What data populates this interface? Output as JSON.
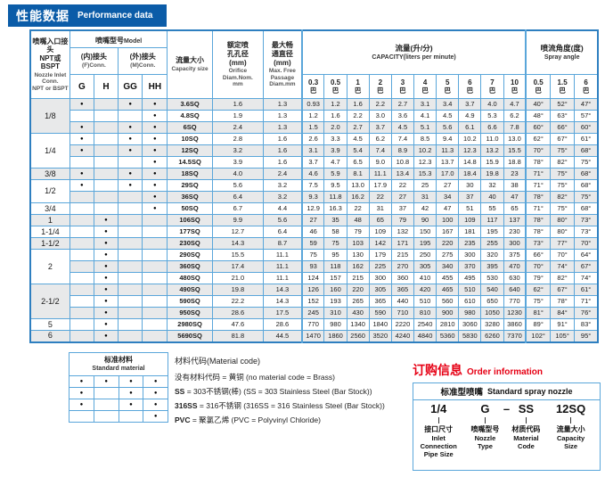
{
  "page": {
    "title_cn": "性能数据",
    "title_en": "Performance data"
  },
  "table": {
    "header": {
      "inlet_cn": "喷嘴入口接头\nNPT或BSPT",
      "inlet_en": "Nozzle Inlet\nConn.\nNPT or BSPT",
      "model_cn": "喷嘴型号",
      "model_en": "Model",
      "fconn_cn": "(内)接头",
      "fconn_en": "(F)Conn.",
      "mconn_cn": "(外)接头",
      "mconn_en": "(M)Conn.",
      "model_cols": [
        "G",
        "H",
        "GG",
        "HH"
      ],
      "capacity_size_cn": "流量大小",
      "capacity_size_en": "Capacity size",
      "orifice_cn": "额定喷\n孔孔径\n(mm)",
      "orifice_en": "Orifice\nDiam.Nom.\nmm",
      "passage_cn": "最大畅\n通直径\n(mm)",
      "passage_en": "Max. Free\nPassage\nDiam.mm",
      "capacity_group_cn": "流量(升/分)",
      "capacity_group_en": "CAPACITY(liters per minute)",
      "pressures": [
        "0.3",
        "0.5",
        "1",
        "2",
        "3",
        "4",
        "5",
        "6",
        "7",
        "10"
      ],
      "pressure_unit": "巴",
      "spray_group_cn": "喷流角度(度)",
      "spray_group_en": "Spray angle",
      "spray_pressures": [
        "0.5",
        "1.5",
        "6"
      ]
    },
    "dot_char": "●",
    "groups": [
      {
        "inlet": "1/8",
        "rows": [
          {
            "size": "3.6SQ",
            "conns": [
              1,
              0,
              1,
              1
            ],
            "orifice": "1.6",
            "passage": "1.3",
            "flows": [
              "0.93",
              "1.2",
              "1.6",
              "2.2",
              "2.7",
              "3.1",
              "3.4",
              "3.7",
              "4.0",
              "4.7"
            ],
            "angles": [
              "40°",
              "52°",
              "47°"
            ]
          },
          {
            "size": "4.8SQ",
            "conns": [
              0,
              0,
              0,
              1
            ],
            "orifice": "1.9",
            "passage": "1.3",
            "flows": [
              "1.2",
              "1.6",
              "2.2",
              "3.0",
              "3.6",
              "4.1",
              "4.5",
              "4.9",
              "5.3",
              "6.2"
            ],
            "angles": [
              "48°",
              "63°",
              "57°"
            ]
          },
          {
            "size": "6SQ",
            "conns": [
              1,
              0,
              1,
              1
            ],
            "orifice": "2.4",
            "passage": "1.3",
            "flows": [
              "1.5",
              "2.0",
              "2.7",
              "3.7",
              "4.5",
              "5.1",
              "5.6",
              "6.1",
              "6.6",
              "7.8"
            ],
            "angles": [
              "60°",
              "66°",
              "60°"
            ]
          }
        ]
      },
      {
        "inlet": "1/4",
        "rows": [
          {
            "size": "10SQ",
            "conns": [
              1,
              0,
              1,
              1
            ],
            "orifice": "2.8",
            "passage": "1.6",
            "flows": [
              "2.6",
              "3.3",
              "4.5",
              "6.2",
              "7.4",
              "8.5",
              "9.4",
              "10.2",
              "11.0",
              "13.0"
            ],
            "angles": [
              "62°",
              "67°",
              "61°"
            ]
          },
          {
            "size": "12SQ",
            "conns": [
              1,
              0,
              1,
              1
            ],
            "orifice": "3.2",
            "passage": "1.6",
            "flows": [
              "3.1",
              "3.9",
              "5.4",
              "7.4",
              "8.9",
              "10.2",
              "11.3",
              "12.3",
              "13.2",
              "15.5"
            ],
            "angles": [
              "70°",
              "75°",
              "68°"
            ]
          },
          {
            "size": "14.5SQ",
            "conns": [
              0,
              0,
              0,
              1
            ],
            "orifice": "3.9",
            "passage": "1.6",
            "flows": [
              "3.7",
              "4.7",
              "6.5",
              "9.0",
              "10.8",
              "12.3",
              "13.7",
              "14.8",
              "15.9",
              "18.8"
            ],
            "angles": [
              "78°",
              "82°",
              "75°"
            ]
          }
        ]
      },
      {
        "inlet": "3/8",
        "rows": [
          {
            "size": "18SQ",
            "conns": [
              1,
              0,
              1,
              1
            ],
            "orifice": "4.0",
            "passage": "2.4",
            "flows": [
              "4.6",
              "5.9",
              "8.1",
              "11.1",
              "13.4",
              "15.3",
              "17.0",
              "18.4",
              "19.8",
              "23"
            ],
            "angles": [
              "71°",
              "75°",
              "68°"
            ]
          }
        ]
      },
      {
        "inlet": "1/2",
        "rows": [
          {
            "size": "29SQ",
            "conns": [
              1,
              0,
              1,
              1
            ],
            "orifice": "5.6",
            "passage": "3.2",
            "flows": [
              "7.5",
              "9.5",
              "13.0",
              "17.9",
              "22",
              "25",
              "27",
              "30",
              "32",
              "38"
            ],
            "angles": [
              "71°",
              "75°",
              "68°"
            ]
          },
          {
            "size": "36SQ",
            "conns": [
              0,
              0,
              0,
              1
            ],
            "orifice": "6.4",
            "passage": "3.2",
            "flows": [
              "9.3",
              "11.8",
              "16.2",
              "22",
              "27",
              "31",
              "34",
              "37",
              "40",
              "47"
            ],
            "angles": [
              "78°",
              "82°",
              "75°"
            ]
          }
        ]
      },
      {
        "inlet": "3/4",
        "rows": [
          {
            "size": "50SQ",
            "conns": [
              0,
              0,
              0,
              1
            ],
            "orifice": "6.7",
            "passage": "4.4",
            "flows": [
              "12.9",
              "16.3",
              "22",
              "31",
              "37",
              "42",
              "47",
              "51",
              "55",
              "65"
            ],
            "angles": [
              "71°",
              "75°",
              "68°"
            ]
          }
        ]
      },
      {
        "inlet": "1",
        "rows": [
          {
            "size": "106SQ",
            "conns": [
              0,
              1,
              0,
              0
            ],
            "orifice": "9.9",
            "passage": "5.6",
            "flows": [
              "27",
              "35",
              "48",
              "65",
              "79",
              "90",
              "100",
              "109",
              "117",
              "137"
            ],
            "angles": [
              "78°",
              "80°",
              "73°"
            ]
          }
        ]
      },
      {
        "inlet": "1-1/4",
        "rows": [
          {
            "size": "177SQ",
            "conns": [
              0,
              1,
              0,
              0
            ],
            "orifice": "12.7",
            "passage": "6.4",
            "flows": [
              "46",
              "58",
              "79",
              "109",
              "132",
              "150",
              "167",
              "181",
              "195",
              "230"
            ],
            "angles": [
              "78°",
              "80°",
              "73°"
            ]
          }
        ]
      },
      {
        "inlet": "1-1/2",
        "rows": [
          {
            "size": "230SQ",
            "conns": [
              0,
              1,
              0,
              0
            ],
            "orifice": "14.3",
            "passage": "8.7",
            "flows": [
              "59",
              "75",
              "103",
              "142",
              "171",
              "195",
              "220",
              "235",
              "255",
              "300"
            ],
            "angles": [
              "73°",
              "77°",
              "70°"
            ]
          }
        ]
      },
      {
        "inlet": "2",
        "rows": [
          {
            "size": "290SQ",
            "conns": [
              0,
              1,
              0,
              0
            ],
            "orifice": "15.5",
            "passage": "11.1",
            "flows": [
              "75",
              "95",
              "130",
              "179",
              "215",
              "250",
              "275",
              "300",
              "320",
              "375"
            ],
            "angles": [
              "66°",
              "70°",
              "64°"
            ]
          },
          {
            "size": "360SQ",
            "conns": [
              0,
              1,
              0,
              0
            ],
            "orifice": "17.4",
            "passage": "11.1",
            "flows": [
              "93",
              "118",
              "162",
              "225",
              "270",
              "305",
              "340",
              "370",
              "395",
              "470"
            ],
            "angles": [
              "70°",
              "74°",
              "67°"
            ]
          },
          {
            "size": "480SQ",
            "conns": [
              0,
              1,
              0,
              0
            ],
            "orifice": "21.0",
            "passage": "11.1",
            "flows": [
              "124",
              "157",
              "215",
              "300",
              "360",
              "410",
              "455",
              "495",
              "530",
              "630"
            ],
            "angles": [
              "79°",
              "82°",
              "74°"
            ]
          }
        ]
      },
      {
        "inlet": "2-1/2",
        "rows": [
          {
            "size": "490SQ",
            "conns": [
              0,
              1,
              0,
              0
            ],
            "orifice": "19.8",
            "passage": "14.3",
            "flows": [
              "126",
              "160",
              "220",
              "305",
              "365",
              "420",
              "465",
              "510",
              "540",
              "640"
            ],
            "angles": [
              "62°",
              "67°",
              "61°"
            ]
          },
          {
            "size": "590SQ",
            "conns": [
              0,
              1,
              0,
              0
            ],
            "orifice": "22.2",
            "passage": "14.3",
            "flows": [
              "152",
              "193",
              "265",
              "365",
              "440",
              "510",
              "560",
              "610",
              "650",
              "770"
            ],
            "angles": [
              "75°",
              "78°",
              "71°"
            ]
          },
          {
            "size": "950SQ",
            "conns": [
              0,
              1,
              0,
              0
            ],
            "orifice": "28.6",
            "passage": "17.5",
            "flows": [
              "245",
              "310",
              "430",
              "590",
              "710",
              "810",
              "900",
              "980",
              "1050",
              "1230"
            ],
            "angles": [
              "81°",
              "84°",
              "76°"
            ]
          }
        ]
      },
      {
        "inlet": "5",
        "rows": [
          {
            "size": "2980SQ",
            "conns": [
              0,
              1,
              0,
              0
            ],
            "orifice": "47.6",
            "passage": "28.6",
            "flows": [
              "770",
              "980",
              "1340",
              "1840",
              "2220",
              "2540",
              "2810",
              "3060",
              "3280",
              "3860"
            ],
            "angles": [
              "89°",
              "91°",
              "83°"
            ]
          }
        ]
      },
      {
        "inlet": "6",
        "rows": [
          {
            "size": "5690SQ",
            "conns": [
              0,
              1,
              0,
              0
            ],
            "orifice": "81.8",
            "passage": "44.5",
            "flows": [
              "1470",
              "1860",
              "2560",
              "3520",
              "4240",
              "4840",
              "5360",
              "5830",
              "6260",
              "7370"
            ],
            "angles": [
              "102°",
              "105°",
              "95°"
            ]
          }
        ]
      }
    ]
  },
  "standard_material": {
    "title_cn": "标准材料",
    "title_en": "Standard  material",
    "rows": [
      [
        1,
        1,
        1,
        1
      ],
      [
        1,
        0,
        1,
        1
      ],
      [
        1,
        0,
        1,
        1
      ],
      [
        0,
        0,
        0,
        1
      ]
    ]
  },
  "material_code": {
    "title": "材料代码(Material code)",
    "lines": [
      {
        "code": "",
        "text": "没有材料代码 = 黄铜  (no material code = Brass)"
      },
      {
        "code": "SS",
        "text": " = 303不锈钢(棒)  (SS = 303 Stainless Steel (Bar Stock))"
      },
      {
        "code": "316SS",
        "text": " = 316不锈钢 (316SS = 316 Stainless Steel (Bar Stock))"
      },
      {
        "code": "PVC",
        "text": " = 聚氯乙烯 (PVC = Polyvinyl Chloride)"
      }
    ]
  },
  "order_info": {
    "title_cn": "订购信息",
    "title_en": "Order information",
    "box_title_cn": "标准型喷嘴",
    "box_title_en": "Standard spray nozzle",
    "example": {
      "dash": "–",
      "parts": [
        {
          "value": "1/4",
          "label_cn": "接口尺寸",
          "label_en": "Inlet\nConnection\nPipe Size"
        },
        {
          "value": "G",
          "label_cn": "喷嘴型号",
          "label_en": "Nozzle\nType"
        },
        {
          "value": "SS",
          "label_cn": "材质代码",
          "label_en": "Material\nCode"
        },
        {
          "value": "12SQ",
          "label_cn": "流量大小",
          "label_en": "Capacity\nSize"
        }
      ]
    }
  },
  "colors": {
    "banner_blue": "#0b5ca8",
    "border_blue": "#5aa6da",
    "outer_border_blue": "#2e7fc0",
    "row_gray": "#e8e9ea",
    "accent_red": "#e60014"
  }
}
